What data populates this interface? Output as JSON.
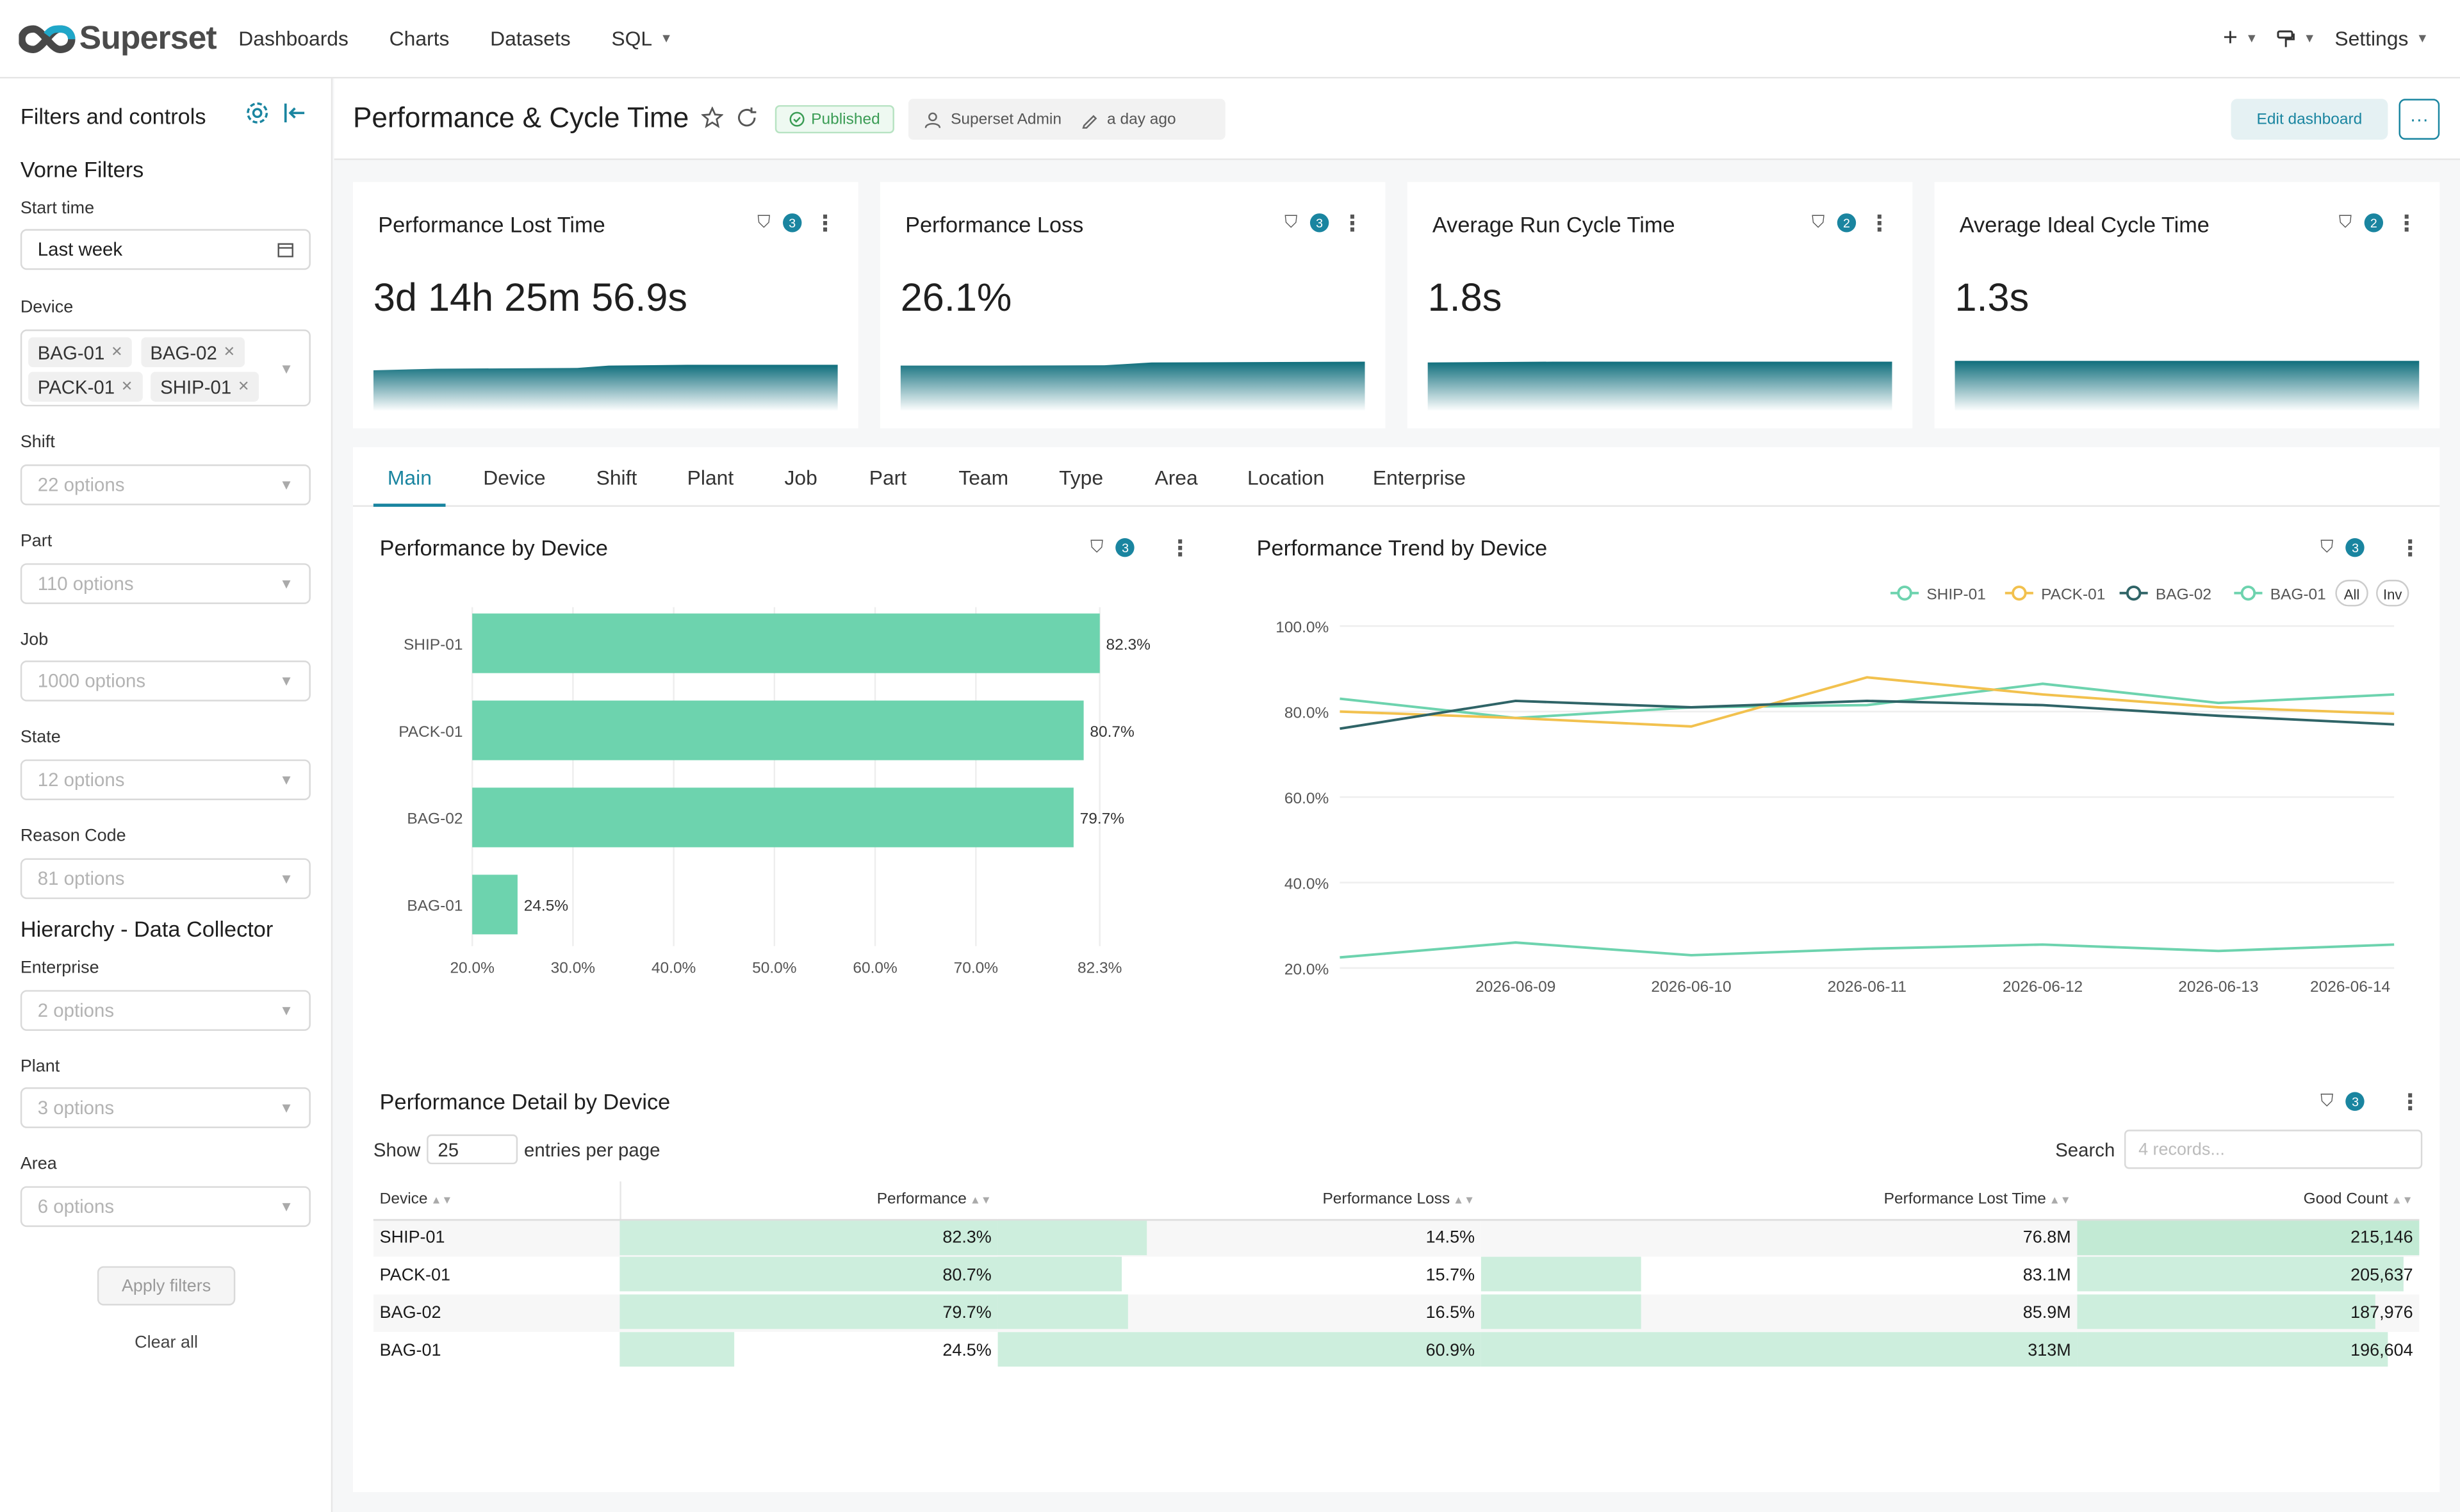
{
  "app": {
    "name": "Superset"
  },
  "nav": {
    "items": [
      "Dashboards",
      "Charts",
      "Datasets",
      "SQL"
    ],
    "settings": "Settings"
  },
  "sidebar": {
    "title": "Filters and controls",
    "section1": "Vorne Filters",
    "start_time_label": "Start time",
    "start_time_value": "Last week",
    "device_label": "Device",
    "device_tags": [
      "BAG-01",
      "BAG-02",
      "PACK-01",
      "SHIP-01"
    ],
    "filters": [
      {
        "label": "Shift",
        "placeholder": "22 options"
      },
      {
        "label": "Part",
        "placeholder": "110 options"
      },
      {
        "label": "Job",
        "placeholder": "1000 options"
      },
      {
        "label": "State",
        "placeholder": "12 options"
      },
      {
        "label": "Reason Code",
        "placeholder": "81 options"
      }
    ],
    "section2": "Hierarchy - Data Collector",
    "filters2": [
      {
        "label": "Enterprise",
        "placeholder": "2 options"
      },
      {
        "label": "Plant",
        "placeholder": "3 options"
      },
      {
        "label": "Area",
        "placeholder": "6 options"
      }
    ],
    "apply_label": "Apply filters",
    "clear_label": "Clear all"
  },
  "header": {
    "title": "Performance & Cycle Time",
    "status": "Published",
    "owner": "Superset Admin",
    "modified": "a day ago",
    "edit_label": "Edit dashboard"
  },
  "kpis": [
    {
      "title": "Performance Lost Time",
      "value": "3d 14h 25m 56.9s",
      "filters": "3"
    },
    {
      "title": "Performance Loss",
      "value": "26.1%",
      "filters": "3"
    },
    {
      "title": "Average Run Cycle Time",
      "value": "1.8s",
      "filters": "2"
    },
    {
      "title": "Average Ideal Cycle Time",
      "value": "1.3s",
      "filters": "2"
    }
  ],
  "tabs": [
    "Main",
    "Device",
    "Shift",
    "Plant",
    "Job",
    "Part",
    "Team",
    "Type",
    "Area",
    "Location",
    "Enterprise"
  ],
  "active_tab": "Main",
  "colors": {
    "accent": "#1a85a0",
    "bar": "#6dd3ae",
    "ship": "#6dd3ae",
    "pack": "#f2c14e",
    "bag02": "#2f6467",
    "bag01": "#6dd3ae"
  },
  "chart_data": [
    {
      "type": "bar",
      "title": "Performance by Device",
      "filters": "3",
      "categories": [
        "SHIP-01",
        "PACK-01",
        "BAG-02",
        "BAG-01"
      ],
      "values": [
        82.3,
        80.7,
        79.7,
        24.5
      ],
      "labels": [
        "82.3%",
        "80.7%",
        "79.7%",
        "24.5%"
      ],
      "xticks": [
        "20.0%",
        "30.0%",
        "40.0%",
        "50.0%",
        "60.0%",
        "70.0%",
        "82.3%"
      ],
      "xlim": [
        20,
        82.3
      ],
      "orientation": "horizontal"
    },
    {
      "type": "line",
      "title": "Performance Trend by Device",
      "filters": "3",
      "x": [
        "2026-06-08",
        "2026-06-09",
        "2026-06-10",
        "2026-06-11",
        "2026-06-12",
        "2026-06-13",
        "2026-06-14"
      ],
      "xticks": [
        "2026-06-09",
        "2026-06-10",
        "2026-06-11",
        "2026-06-12",
        "2026-06-13",
        "2026-06-14"
      ],
      "yticks": [
        "100.0%",
        "80.0%",
        "60.0%",
        "40.0%",
        "20.0%"
      ],
      "ylim": [
        20,
        100
      ],
      "legend": [
        "SHIP-01",
        "PACK-01",
        "BAG-02",
        "BAG-01"
      ],
      "legend_buttons": [
        "All",
        "Inv"
      ],
      "series": [
        {
          "name": "SHIP-01",
          "color": "#6dd3ae",
          "values": [
            83,
            78.5,
            81,
            81.5,
            86.5,
            82,
            84
          ]
        },
        {
          "name": "PACK-01",
          "color": "#f2c14e",
          "values": [
            80,
            78.5,
            76.5,
            88,
            84,
            81,
            79.5
          ]
        },
        {
          "name": "BAG-02",
          "color": "#2f6467",
          "values": [
            76,
            82.5,
            81,
            82.5,
            81.5,
            79,
            77
          ]
        },
        {
          "name": "BAG-01",
          "color": "#6dd3ae",
          "values": [
            22.5,
            26,
            23,
            24.5,
            25.5,
            24,
            25.5
          ]
        }
      ]
    }
  ],
  "table": {
    "title": "Performance Detail by Device",
    "filters": "3",
    "show_label": "Show",
    "page_size": "25",
    "entries_label": "entries per page",
    "search_label": "Search",
    "search_placeholder": "4 records...",
    "columns": [
      "Device",
      "Performance",
      "Performance Loss",
      "Performance Lost Time",
      "Good Count"
    ],
    "rows": [
      {
        "device": "SHIP-01",
        "perf": "82.3%",
        "loss": "14.5%",
        "lost_time": "76.8M",
        "good": "215,146"
      },
      {
        "device": "PACK-01",
        "perf": "80.7%",
        "loss": "15.7%",
        "lost_time": "83.1M",
        "good": "205,637"
      },
      {
        "device": "BAG-02",
        "perf": "79.7%",
        "loss": "16.5%",
        "lost_time": "85.9M",
        "good": "187,976"
      },
      {
        "device": "BAG-01",
        "perf": "24.5%",
        "loss": "60.9%",
        "lost_time": "313M",
        "good": "196,604"
      }
    ]
  }
}
